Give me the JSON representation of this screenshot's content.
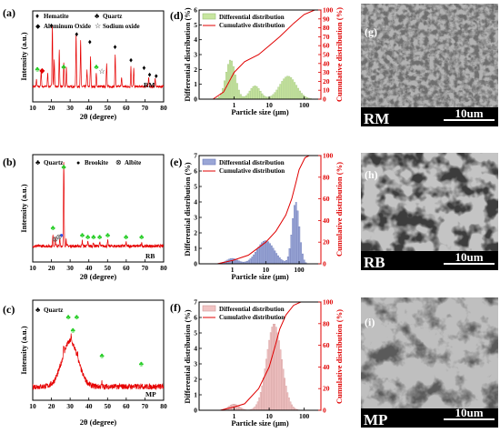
{
  "figure": {
    "xrd": [
      {
        "letter": "(a)",
        "sample": "RM",
        "xlabel": "2θ (degree)",
        "ylabel": "Intensity (a.u.)",
        "xticks": [
          "10",
          "20",
          "30",
          "40",
          "50",
          "60",
          "70",
          "80"
        ],
        "legend": [
          {
            "symbol": "♦",
            "color": "#000000",
            "label": "Hematite"
          },
          {
            "symbol": "♣",
            "color": "#22cc22",
            "label": "Quartz"
          },
          {
            "symbol": "◆",
            "color": "#e00000",
            "label": "Aluminum Oxide"
          },
          {
            "symbol": "☆",
            "color": "#000000",
            "label": "Sodium oxide"
          }
        ]
      },
      {
        "letter": "(b)",
        "sample": "RB",
        "xlabel": "2θ (degree)",
        "ylabel": "Intensity (a.u.)",
        "xticks": [
          "10",
          "20",
          "30",
          "40",
          "50",
          "60",
          "70",
          "80"
        ],
        "legend": [
          {
            "symbol": "♣",
            "color": "#22cc22",
            "label": "Quartz"
          },
          {
            "symbol": "●",
            "color": "#3355ee",
            "label": "Brookite"
          },
          {
            "symbol": "⊗",
            "color": "#555555",
            "label": "Albite"
          }
        ]
      },
      {
        "letter": "(c)",
        "sample": "MP",
        "xlabel": "2θ (degree)",
        "ylabel": "Intensity (a.u.)",
        "xticks": [
          "10",
          "20",
          "30",
          "40",
          "50",
          "60",
          "70",
          "80"
        ],
        "legend": [
          {
            "symbol": "♣",
            "color": "#22cc22",
            "label": "Quartz"
          }
        ]
      }
    ],
    "psd": [
      {
        "letter": "(d)",
        "xlabel": "Particle size (μm)",
        "ylabel_left": "Differential distribution (%)",
        "ylabel_right": "Cumulative distribution (%)",
        "left_ticks": [
          "0",
          "1",
          "2",
          "3",
          "4",
          "5",
          "6"
        ],
        "right_ticks": [
          "0",
          "10",
          "20",
          "30",
          "40",
          "50",
          "60",
          "70",
          "80",
          "90",
          "100"
        ],
        "xticks": [
          "1",
          "10",
          "100"
        ],
        "legend": [
          "Differential distribution",
          "Cumulative distribution"
        ],
        "bar_color": "#c8e6a0",
        "bar_edge": "#9cc27a"
      },
      {
        "letter": "(e)",
        "xlabel": "Particle size (μm)",
        "ylabel_left": "Differential distribution (%)",
        "ylabel_right": "Cumulative distribution (%)",
        "left_ticks": [
          "0",
          "1",
          "2",
          "3",
          "4",
          "5",
          "6",
          "7"
        ],
        "right_ticks": [
          "0",
          "20",
          "40",
          "60",
          "80",
          "100"
        ],
        "xticks": [
          "1",
          "10",
          "100"
        ],
        "legend": [
          "Differential distribution",
          "Cumulative distribution"
        ],
        "bar_color": "#9aa6d6",
        "bar_edge": "#6a78b8"
      },
      {
        "letter": "(f)",
        "xlabel": "Particle size (μm)",
        "ylabel_left": "Differential distribution (%)",
        "ylabel_right": "Cumulative distribution (%)",
        "left_ticks": [
          "0",
          "1",
          "2",
          "3",
          "4",
          "5",
          "6",
          "7"
        ],
        "right_ticks": [
          "0",
          "20",
          "40",
          "60",
          "80",
          "100"
        ],
        "xticks": [
          "1",
          "10",
          "100"
        ],
        "legend": [
          "Differential distribution",
          "Cumulative distribution"
        ],
        "bar_color": "#f1c4c4",
        "bar_edge": "#d49a9a"
      }
    ],
    "sem": [
      {
        "letter": "(g)",
        "sample": "RM",
        "scale": "10um"
      },
      {
        "letter": "(h)",
        "sample": "RB",
        "scale": "10um"
      },
      {
        "letter": "(i)",
        "sample": "MP",
        "scale": "10um"
      }
    ]
  },
  "chart_data": [
    {
      "type": "line",
      "panel": "(a)",
      "xlabel": "2θ (degree)",
      "ylabel": "Intensity (a.u.)",
      "xlim": [
        10,
        80
      ],
      "baseline": 0.15,
      "peaks": [
        {
          "x": 12.0,
          "h": 0.1
        },
        {
          "x": 14.5,
          "h": 0.25
        },
        {
          "x": 18.0,
          "h": 0.2
        },
        {
          "x": 20.5,
          "h": 0.95
        },
        {
          "x": 21.5,
          "h": 0.4
        },
        {
          "x": 24.2,
          "h": 0.55
        },
        {
          "x": 26.6,
          "h": 0.35
        },
        {
          "x": 28.0,
          "h": 0.3
        },
        {
          "x": 33.2,
          "h": 0.8
        },
        {
          "x": 35.6,
          "h": 0.7
        },
        {
          "x": 39.0,
          "h": 0.25
        },
        {
          "x": 40.9,
          "h": 0.45
        },
        {
          "x": 44.0,
          "h": 0.2
        },
        {
          "x": 49.5,
          "h": 0.35
        },
        {
          "x": 54.1,
          "h": 0.5
        },
        {
          "x": 57.5,
          "h": 0.15
        },
        {
          "x": 62.5,
          "h": 0.3
        },
        {
          "x": 64.0,
          "h": 0.28
        },
        {
          "x": 72.0,
          "h": 0.15
        },
        {
          "x": 75.5,
          "h": 0.12
        }
      ],
      "markers": [
        {
          "x": 20.0,
          "sym": "♦",
          "color": "#000000",
          "y": 1.05
        },
        {
          "x": 33.5,
          "sym": "♦",
          "color": "#000000",
          "y": 0.92
        },
        {
          "x": 40.5,
          "sym": "♦",
          "color": "#000000",
          "y": 0.8
        },
        {
          "x": 54.0,
          "sym": "♦",
          "color": "#000000",
          "y": 0.72
        },
        {
          "x": 62.5,
          "sym": "♦",
          "color": "#000000",
          "y": 0.52
        },
        {
          "x": 69.5,
          "sym": "♦",
          "color": "#000000",
          "y": 0.4
        },
        {
          "x": 72.5,
          "sym": "♦",
          "color": "#000000",
          "y": 0.3
        },
        {
          "x": 76.0,
          "sym": "♦",
          "color": "#000000",
          "y": 0.28
        },
        {
          "x": 12.5,
          "sym": "♣",
          "color": "#22cc22",
          "y": 0.38
        },
        {
          "x": 26.5,
          "sym": "♣",
          "color": "#22cc22",
          "y": 0.42
        },
        {
          "x": 44.0,
          "sym": "♣",
          "color": "#22cc22",
          "y": 0.42
        },
        {
          "x": 15.0,
          "sym": "◆",
          "color": "#e00000",
          "y": 0.36
        },
        {
          "x": 47.0,
          "sym": "☆",
          "color": "#000000",
          "y": 0.35
        }
      ]
    },
    {
      "type": "line",
      "panel": "(b)",
      "xlabel": "2θ (degree)",
      "ylabel": "Intensity (a.u.)",
      "xlim": [
        10,
        80
      ],
      "baseline": 0.12,
      "peaks": [
        {
          "x": 20.8,
          "h": 0.12
        },
        {
          "x": 22.0,
          "h": 0.1
        },
        {
          "x": 24.5,
          "h": 0.08
        },
        {
          "x": 26.6,
          "h": 0.95
        },
        {
          "x": 27.9,
          "h": 0.08
        },
        {
          "x": 36.5,
          "h": 0.06
        },
        {
          "x": 39.5,
          "h": 0.05
        },
        {
          "x": 42.5,
          "h": 0.04
        },
        {
          "x": 45.8,
          "h": 0.04
        },
        {
          "x": 50.1,
          "h": 0.06
        },
        {
          "x": 59.9,
          "h": 0.04
        },
        {
          "x": 68.2,
          "h": 0.04
        }
      ],
      "markers": [
        {
          "x": 20.8,
          "sym": "♣",
          "color": "#22cc22",
          "y": 0.3
        },
        {
          "x": 26.6,
          "sym": "♣",
          "color": "#22cc22",
          "y": 1.0
        },
        {
          "x": 36.5,
          "sym": "♣",
          "color": "#22cc22",
          "y": 0.22
        },
        {
          "x": 39.5,
          "sym": "♣",
          "color": "#22cc22",
          "y": 0.2
        },
        {
          "x": 42.5,
          "sym": "♣",
          "color": "#22cc22",
          "y": 0.2
        },
        {
          "x": 45.8,
          "sym": "♣",
          "color": "#22cc22",
          "y": 0.2
        },
        {
          "x": 50.1,
          "sym": "♣",
          "color": "#22cc22",
          "y": 0.22
        },
        {
          "x": 59.9,
          "sym": "♣",
          "color": "#22cc22",
          "y": 0.2
        },
        {
          "x": 68.2,
          "sym": "♣",
          "color": "#22cc22",
          "y": 0.2
        },
        {
          "x": 25.4,
          "sym": "●",
          "color": "#3355ee",
          "y": 0.22
        },
        {
          "x": 22.0,
          "sym": "⊗",
          "color": "#555555",
          "y": 0.17
        },
        {
          "x": 24.0,
          "sym": "⊗",
          "color": "#555555",
          "y": 0.2
        }
      ]
    },
    {
      "type": "line",
      "panel": "(c)",
      "xlabel": "2θ (degree)",
      "ylabel": "Intensity (a.u.)",
      "xlim": [
        10,
        80
      ],
      "baseline": 0.1,
      "hump": {
        "x": 30.0,
        "h": 0.55,
        "w": 6.0
      },
      "peaks": [
        {
          "x": 26.6,
          "h": 0.1
        },
        {
          "x": 30.5,
          "h": 0.08
        },
        {
          "x": 34.0,
          "h": 0.06
        },
        {
          "x": 47.0,
          "h": 0.05
        },
        {
          "x": 68.0,
          "h": 0.04
        }
      ],
      "markers": [
        {
          "x": 29.0,
          "sym": "♣",
          "color": "#22cc22",
          "y": 0.92
        },
        {
          "x": 33.5,
          "sym": "♣",
          "color": "#22cc22",
          "y": 0.92
        },
        {
          "x": 31.5,
          "sym": "♣",
          "color": "#22cc22",
          "y": 0.76
        },
        {
          "x": 47.0,
          "sym": "♣",
          "color": "#22cc22",
          "y": 0.45
        },
        {
          "x": 68.0,
          "sym": "♣",
          "color": "#22cc22",
          "y": 0.35
        }
      ]
    },
    {
      "type": "bar",
      "panel": "(d)",
      "x_scale": "log",
      "xlim": [
        0.1,
        300
      ],
      "ylim_left": [
        0,
        6
      ],
      "ylim_right": [
        0,
        100
      ],
      "differential": {
        "components": [
          {
            "mu": 0.8,
            "sigma": 0.32,
            "amp": 2.65
          },
          {
            "mu": 35.0,
            "sigma": 0.55,
            "amp": 1.55
          },
          {
            "mu": 4.0,
            "sigma": 0.35,
            "amp": 0.9
          }
        ],
        "range": [
          0.25,
          300
        ]
      },
      "cumulative": [
        [
          0.25,
          0
        ],
        [
          0.5,
          8
        ],
        [
          1,
          30
        ],
        [
          2,
          42
        ],
        [
          5,
          50
        ],
        [
          10,
          60
        ],
        [
          20,
          70
        ],
        [
          50,
          85
        ],
        [
          100,
          95
        ],
        [
          200,
          100
        ],
        [
          300,
          100
        ]
      ]
    },
    {
      "type": "bar",
      "panel": "(e)",
      "x_scale": "log",
      "xlim": [
        0.1,
        450
      ],
      "ylim_left": [
        0,
        7
      ],
      "ylim_right": [
        0,
        100
      ],
      "differential": {
        "components": [
          {
            "mu": 80.0,
            "sigma": 0.25,
            "amp": 4.0
          },
          {
            "mu": 10.0,
            "sigma": 0.6,
            "amp": 1.5
          },
          {
            "mu": 1.0,
            "sigma": 0.4,
            "amp": 0.35
          }
        ],
        "range": [
          0.35,
          300
        ]
      },
      "cumulative": [
        [
          0.35,
          0
        ],
        [
          1,
          3
        ],
        [
          3,
          8
        ],
        [
          10,
          20
        ],
        [
          20,
          30
        ],
        [
          40,
          45
        ],
        [
          60,
          60
        ],
        [
          80,
          75
        ],
        [
          100,
          87
        ],
        [
          150,
          98
        ],
        [
          200,
          100
        ],
        [
          450,
          100
        ]
      ]
    },
    {
      "type": "bar",
      "panel": "(f)",
      "x_scale": "log",
      "xlim": [
        0.1,
        300
      ],
      "ylim_left": [
        0,
        7
      ],
      "ylim_right": [
        0,
        100
      ],
      "differential": {
        "components": [
          {
            "mu": 14.0,
            "sigma": 0.5,
            "amp": 5.6
          },
          {
            "mu": 1.0,
            "sigma": 0.35,
            "amp": 0.4
          }
        ],
        "range": [
          0.4,
          110
        ]
      },
      "cumulative": [
        [
          0.4,
          0
        ],
        [
          1,
          3
        ],
        [
          2,
          6
        ],
        [
          5,
          20
        ],
        [
          10,
          40
        ],
        [
          15,
          60
        ],
        [
          20,
          75
        ],
        [
          30,
          88
        ],
        [
          50,
          97
        ],
        [
          80,
          100
        ],
        [
          300,
          100
        ]
      ]
    }
  ]
}
